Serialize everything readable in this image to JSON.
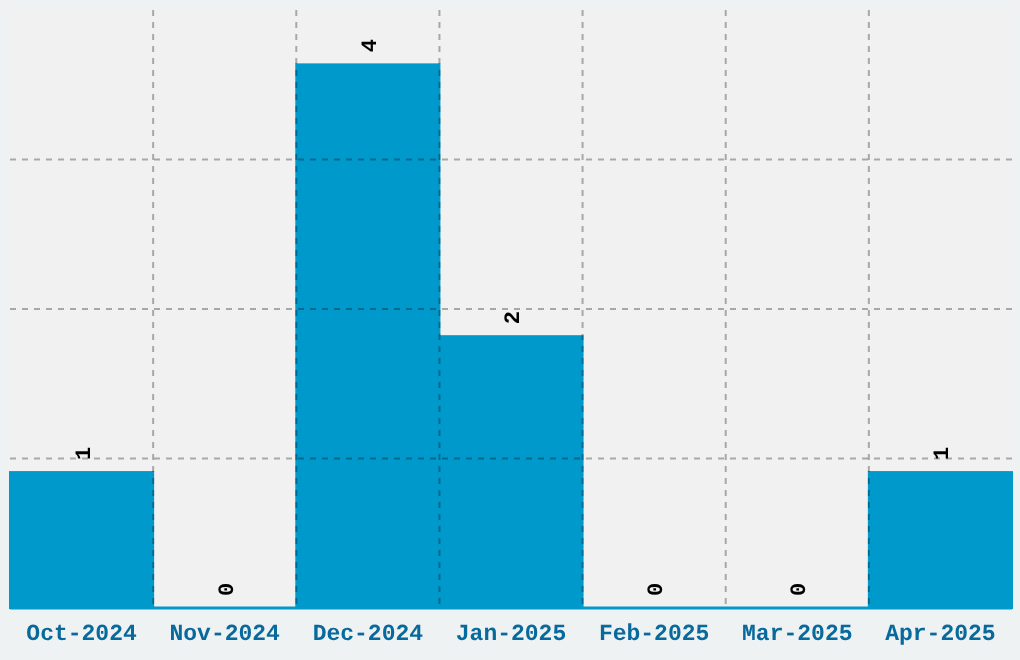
{
  "chart_data": {
    "type": "bar",
    "categories": [
      "Oct-2024",
      "Nov-2024",
      "Dec-2024",
      "Jan-2025",
      "Feb-2025",
      "Mar-2025",
      "Apr-2025"
    ],
    "values": [
      1,
      0,
      4,
      2,
      0,
      0,
      1
    ],
    "color": "#0099cc",
    "ylim": [
      0,
      4.4
    ],
    "yticks": [
      {
        "value": 1.1,
        "label": null
      },
      {
        "value": 2.2,
        "label": null
      },
      {
        "value": 3.3,
        "label": null
      }
    ],
    "grid": true,
    "data_labels": true,
    "tick_labels": "x"
  }
}
